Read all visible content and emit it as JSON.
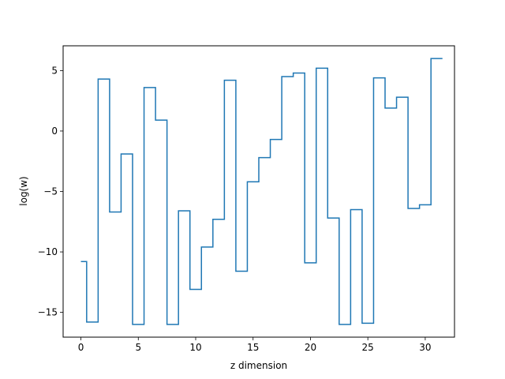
{
  "chart_data": {
    "type": "line",
    "step": "post",
    "title": "",
    "xlabel": "z dimension",
    "ylabel": "log(w)",
    "xlim": [
      -1.55,
      32.55
    ],
    "ylim": [
      -17.05,
      7.05
    ],
    "xticks": [
      0,
      5,
      10,
      15,
      20,
      25,
      30
    ],
    "yticks": [
      -15,
      -10,
      -5,
      0,
      5
    ],
    "xtick_labels": [
      "0",
      "5",
      "10",
      "15",
      "20",
      "25",
      "30"
    ],
    "ytick_labels": [
      "−15",
      "−10",
      "−5",
      "0",
      "5"
    ],
    "grid": false,
    "legend": "none",
    "series": [
      {
        "color": "#1f77b4",
        "x": [
          0,
          1,
          2,
          3,
          4,
          5,
          6,
          7,
          8,
          9,
          10,
          11,
          12,
          13,
          14,
          15,
          16,
          17,
          18,
          19,
          20,
          21,
          22,
          23,
          24,
          25,
          26,
          27,
          28,
          29,
          30,
          31
        ],
        "values": [
          -10.8,
          -15.8,
          4.3,
          -6.7,
          -1.9,
          -16.0,
          3.6,
          0.9,
          -16.0,
          -6.6,
          -13.1,
          -9.6,
          -7.3,
          4.2,
          -11.6,
          -4.2,
          -2.2,
          -0.7,
          4.5,
          4.8,
          -10.9,
          5.2,
          -7.2,
          -16.0,
          -6.5,
          -15.9,
          4.4,
          1.9,
          2.8,
          -6.4,
          -6.1,
          6.0
        ]
      }
    ]
  }
}
